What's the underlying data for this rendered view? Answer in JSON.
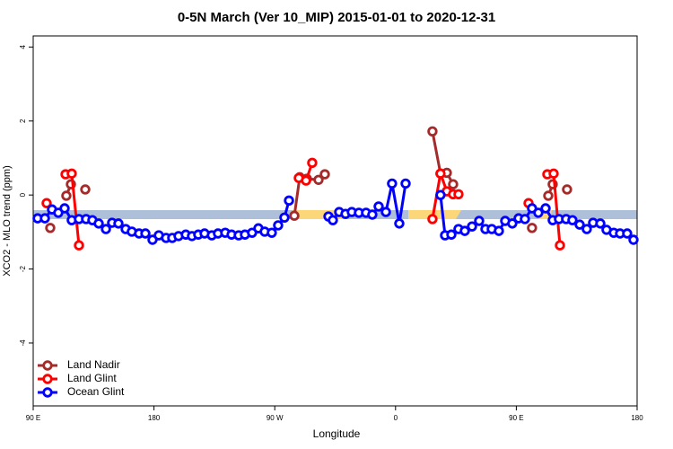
{
  "chart_data": {
    "type": "line",
    "title": "0-5N March (Ver 10_MIP)   2015-01-01 to 2020-12-31",
    "xlabel": "Longitude",
    "ylabel": "XCO2 - MLO trend (ppm)",
    "xlim": [
      90,
      540
    ],
    "ylim": [
      -5.7,
      4.3
    ],
    "xticks": [
      {
        "value": 90,
        "label": "90 E"
      },
      180,
      {
        "value": 270,
        "label": "90 W"
      },
      {
        "value": 360,
        "label": "0"
      },
      {
        "value": 450,
        "label": "90 E"
      },
      {
        "value": 540,
        "label": "180"
      }
    ],
    "yticks": [
      -4,
      -2,
      0,
      2,
      4
    ],
    "legend": "bottomleft",
    "series": [
      {
        "name": "Land Nadir",
        "color": "#a52a2a",
        "x": [
          102.7,
          null,
          114.7,
          118.1,
          null,
          128.8,
          null,
          284.6,
          288.6,
          293.9,
          302.6,
          307.3,
          null,
          387.5,
          393.5,
          398.2,
          402.9,
          null,
          461.7,
          null,
          473.8,
          477.1,
          null,
          487.8
        ],
        "values": [
          -0.89,
          null,
          -0.02,
          0.29,
          null,
          0.15,
          null,
          -0.56,
          0.48,
          0.44,
          0.41,
          0.56,
          null,
          1.72,
          0.58,
          0.6,
          0.29,
          null,
          -0.89,
          null,
          -0.02,
          0.29,
          null,
          0.15
        ]
      },
      {
        "name": "Land Glint",
        "color": "#ff0000",
        "x": [
          100.0,
          null,
          114.1,
          118.7,
          124.1,
          null,
          287.9,
          293.3,
          297.9,
          null,
          387.5,
          393.5,
          398.2,
          402.9,
          406.9,
          null,
          459.1,
          null,
          473.1,
          477.8,
          482.5
        ],
        "values": [
          -0.22,
          null,
          0.56,
          0.58,
          -1.36,
          null,
          0.46,
          0.39,
          0.87,
          null,
          -0.65,
          0.58,
          0.1,
          0.02,
          0.02,
          null,
          -0.22,
          null,
          0.56,
          0.58,
          -1.36
        ]
      },
      {
        "name": "Ocean Glint",
        "color": "#0000ff",
        "x": [
          93.3,
          98.7,
          104.0,
          108.7,
          113.4,
          118.7,
          124.1,
          129.4,
          134.1,
          138.8,
          144.2,
          148.8,
          153.5,
          158.9,
          163.5,
          168.9,
          173.6,
          178.9,
          183.6,
          189.0,
          193.6,
          198.3,
          203.7,
          208.3,
          213.0,
          217.7,
          223.1,
          227.7,
          233.1,
          237.8,
          243.1,
          247.8,
          253.1,
          257.8,
          262.5,
          267.8,
          272.5,
          277.2,
          280.6,
          null,
          310.0,
          313.3,
          318.0,
          322.7,
          327.4,
          332.7,
          338.0,
          342.7,
          347.4,
          352.8,
          357.4,
          362.8,
          367.5,
          null,
          393.5,
          396.9,
          401.6,
          406.9,
          411.6,
          417.0,
          422.3,
          427.0,
          431.7,
          437.0,
          441.7,
          447.0,
          451.7,
          456.4,
          461.7,
          466.4,
          471.8,
          477.1,
          481.8,
          487.1,
          491.8,
          497.2,
          502.5,
          507.2,
          512.6,
          517.2,
          522.6,
          527.3,
          532.6,
          537.3
        ],
        "values": [
          -0.63,
          -0.63,
          -0.39,
          -0.48,
          -0.36,
          -0.68,
          -0.65,
          -0.65,
          -0.68,
          -0.77,
          -0.92,
          -0.75,
          -0.77,
          -0.92,
          -0.99,
          -1.04,
          -1.04,
          -1.21,
          -1.09,
          -1.16,
          -1.16,
          -1.11,
          -1.07,
          -1.11,
          -1.07,
          -1.04,
          -1.09,
          -1.04,
          -1.02,
          -1.07,
          -1.09,
          -1.07,
          -1.02,
          -0.9,
          -0.99,
          -1.02,
          -0.82,
          -0.61,
          -0.15,
          null,
          -0.58,
          -0.68,
          -0.46,
          -0.51,
          -0.46,
          -0.48,
          -0.48,
          -0.53,
          -0.31,
          -0.46,
          0.31,
          -0.77,
          0.31,
          null,
          0.0,
          -1.09,
          -1.07,
          -0.92,
          -0.97,
          -0.85,
          -0.7,
          -0.92,
          -0.92,
          -0.97,
          -0.7,
          -0.77,
          -0.63,
          -0.65,
          -0.36,
          -0.48,
          -0.36,
          -0.68,
          -0.65,
          -0.65,
          -0.68,
          -0.8,
          -0.92,
          -0.75,
          -0.77,
          -0.94,
          -1.02,
          -1.04,
          -1.04,
          -1.21
        ]
      }
    ]
  }
}
